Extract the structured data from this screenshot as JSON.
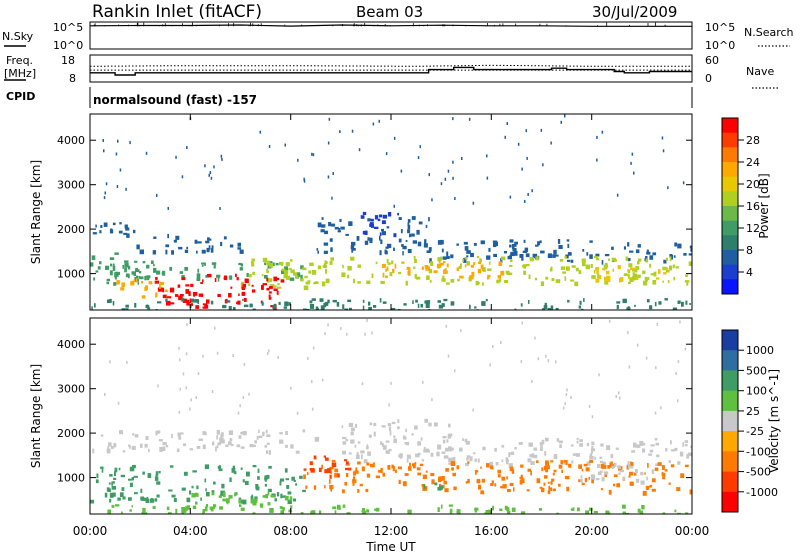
{
  "header": {
    "station": "Rankin Inlet (fitACF)",
    "beam": "Beam 03",
    "date": "30/Jul/2009"
  },
  "top_panel": {
    "left_label": "N.Sky",
    "left_ticks": [
      "10^5",
      "10^0"
    ],
    "right_label": "N.Search",
    "right_ticks": [
      "10^5",
      "10^0"
    ],
    "nsky_ylim_log10": [
      0,
      5
    ],
    "nsky_level_log10": [
      {
        "t": 0,
        "v": 4.3
      },
      {
        "t": 2,
        "v": 4.35
      },
      {
        "t": 4,
        "v": 4.35
      },
      {
        "t": 6,
        "v": 4.45
      },
      {
        "t": 8,
        "v": 4.25
      },
      {
        "t": 10,
        "v": 4.45
      },
      {
        "t": 12,
        "v": 4.3
      },
      {
        "t": 14,
        "v": 4.4
      },
      {
        "t": 16,
        "v": 4.3
      },
      {
        "t": 18,
        "v": 4.3
      },
      {
        "t": 20,
        "v": 4.2
      },
      {
        "t": 22,
        "v": 4.2
      },
      {
        "t": 24,
        "v": 4.2
      }
    ]
  },
  "freq_panel": {
    "left_label_1": "Freq.",
    "left_label_2": "[MHz]",
    "left_ticks": [
      "18",
      "8"
    ],
    "right_label": "Nave",
    "right_ticks": [
      "60",
      "0"
    ],
    "freq_ylim_mhz": [
      8,
      18
    ],
    "freq_dotted_mhz": 12.4,
    "freq_mhz": [
      {
        "t": 0,
        "v": 11.4
      },
      {
        "t": 1.0,
        "v": 10.6
      },
      {
        "t": 1.8,
        "v": 11.4
      },
      {
        "t": 13.5,
        "v": 12.6
      },
      {
        "t": 14.5,
        "v": 13.4
      },
      {
        "t": 15.3,
        "v": 12.6
      },
      {
        "t": 18.4,
        "v": 13.1
      },
      {
        "t": 19.0,
        "v": 12.6
      },
      {
        "t": 20.9,
        "v": 11.9
      },
      {
        "t": 21.3,
        "v": 11.4
      },
      {
        "t": 22.3,
        "v": 11.9
      },
      {
        "t": 23.2,
        "v": 11.9
      }
    ],
    "nave": [
      {
        "t": 0,
        "v": 35
      },
      {
        "t": 3,
        "v": 36
      },
      {
        "t": 9,
        "v": 36
      },
      {
        "t": 13,
        "v": 35
      },
      {
        "t": 16,
        "v": 37
      },
      {
        "t": 20,
        "v": 35
      },
      {
        "t": 24,
        "v": 35
      }
    ]
  },
  "cpid": {
    "label": "CPID",
    "text": "normalsound (fast) -157"
  },
  "power_panel": {
    "ylabel": "Slant Range [km]",
    "ytick_labels": [
      "1000",
      "2000",
      "3000",
      "4000"
    ]
  },
  "velocity_panel": {
    "ylabel": "Slant Range [km]",
    "ytick_labels": [
      "1000",
      "2000",
      "3000",
      "4000"
    ]
  },
  "power_colorbar": {
    "label": "Power [dB]",
    "tick_labels": [
      "28",
      "24",
      "20",
      "16",
      "12",
      "8",
      "4"
    ],
    "colors": [
      "#ff0000",
      "#ff3c00",
      "#ff7a00",
      "#ffa800",
      "#e8c800",
      "#b0d020",
      "#6cb84a",
      "#3e9c64",
      "#2e7e6c",
      "#1f5fa0",
      "#1a3ed0",
      "#0a14ff"
    ]
  },
  "velocity_colorbar": {
    "label": "Velocity [m s^-1]",
    "tick_labels": [
      "1000",
      "500",
      "100",
      "25",
      "-25",
      "-100",
      "-500",
      "-1000"
    ],
    "colors": [
      "#1a3ea0",
      "#2e6ea0",
      "#3e9c64",
      "#5fc040",
      "#c8c8c8",
      "#ffa800",
      "#ff7a00",
      "#ff3c00",
      "#ff0000"
    ]
  },
  "chart_data": [
    {
      "type": "heatmap",
      "title": "Rankin Inlet (fitACF) Beam 03",
      "xlabel": "Time UT",
      "ylabel": "Slant Range [km]",
      "colorbar_label": "Power [dB]",
      "x_tick_labels": [
        "00:00",
        "04:00",
        "08:00",
        "12:00",
        "16:00",
        "20:00",
        "00:00"
      ],
      "xlim_hours": [
        0,
        24
      ],
      "ylim_km": [
        180,
        4590
      ],
      "clim_db": [
        0,
        32
      ],
      "regions": [
        {
          "t0": 0.0,
          "t1": 1.8,
          "r0": 1750,
          "r1": 2200,
          "value": 7
        },
        {
          "t0": 1.8,
          "t1": 6.0,
          "r0": 1500,
          "r1": 1900,
          "value": 6
        },
        {
          "t0": 9.0,
          "t1": 13.5,
          "r0": 1500,
          "r1": 2300,
          "value": 6
        },
        {
          "t0": 10.5,
          "t1": 12.5,
          "r0": 1900,
          "r1": 2400,
          "value": 5
        },
        {
          "t0": 13.5,
          "t1": 24.0,
          "r0": 1300,
          "r1": 1800,
          "value": 7
        },
        {
          "t0": 0.0,
          "t1": 2.0,
          "r0": 800,
          "r1": 1500,
          "value": 12
        },
        {
          "t0": 0.0,
          "t1": 8.5,
          "r0": 900,
          "r1": 1300,
          "value": 12
        },
        {
          "t0": 6.0,
          "t1": 9.0,
          "r0": 700,
          "r1": 1400,
          "value": 18
        },
        {
          "t0": 8.5,
          "t1": 24.0,
          "r0": 800,
          "r1": 1400,
          "value": 16
        },
        {
          "t0": 11.5,
          "t1": 16.5,
          "r0": 900,
          "r1": 1300,
          "value": 22
        },
        {
          "t0": 2.5,
          "t1": 7.8,
          "r0": 250,
          "r1": 1000,
          "value": 30
        },
        {
          "t0": 1.0,
          "t1": 3.0,
          "r0": 500,
          "r1": 900,
          "value": 22
        },
        {
          "t0": 20.0,
          "t1": 23.0,
          "r0": 800,
          "r1": 1200,
          "value": 20
        },
        {
          "t0": 0.0,
          "t1": 24.0,
          "r0": 180,
          "r1": 450,
          "value": 8
        }
      ]
    },
    {
      "type": "heatmap",
      "title": "",
      "xlabel": "Time UT",
      "ylabel": "Slant Range [km]",
      "colorbar_label": "Velocity [m s^-1]",
      "x_tick_labels": [
        "00:00",
        "04:00",
        "08:00",
        "12:00",
        "16:00",
        "20:00",
        "00:00"
      ],
      "xlim_hours": [
        0,
        24
      ],
      "ylim_km": [
        180,
        4590
      ],
      "regions": [
        {
          "t0": 0.0,
          "t1": 9.0,
          "r0": 1600,
          "r1": 2100,
          "value": 0
        },
        {
          "t0": 10.0,
          "t1": 14.5,
          "r0": 1400,
          "r1": 2350,
          "value": 0
        },
        {
          "t0": 14.0,
          "t1": 24.0,
          "r0": 1300,
          "r1": 1900,
          "value": 0
        },
        {
          "t0": 0.0,
          "t1": 8.5,
          "r0": 500,
          "r1": 1300,
          "value": 200
        },
        {
          "t0": 4.0,
          "t1": 8.0,
          "r0": 200,
          "r1": 700,
          "value": 30
        },
        {
          "t0": 8.5,
          "t1": 24.0,
          "r0": 700,
          "r1": 1400,
          "value": -300
        },
        {
          "t0": 8.5,
          "t1": 10.5,
          "r0": 1000,
          "r1": 1500,
          "value": -500
        },
        {
          "t0": 19.5,
          "t1": 22.5,
          "r0": 900,
          "r1": 1300,
          "value": 0
        },
        {
          "t0": 13.0,
          "t1": 14.0,
          "r0": 700,
          "r1": 900,
          "value": 300
        },
        {
          "t0": 0.0,
          "t1": 24.0,
          "r0": 180,
          "r1": 400,
          "value": 50
        }
      ]
    }
  ]
}
